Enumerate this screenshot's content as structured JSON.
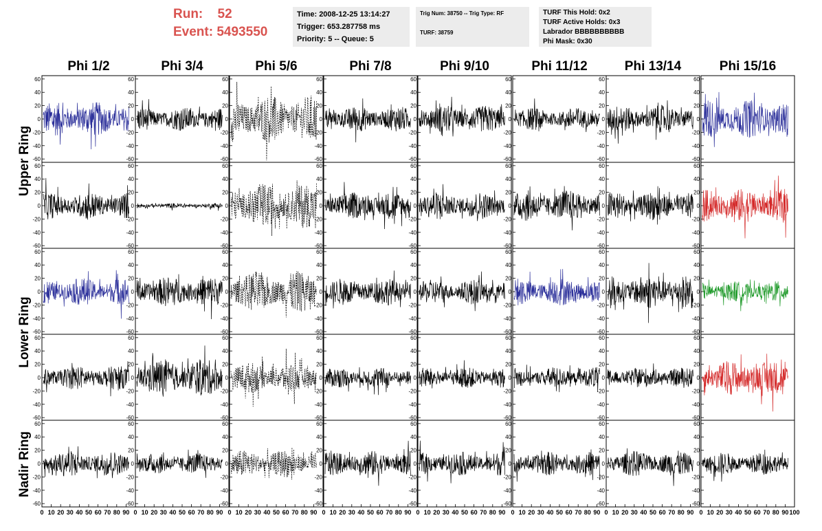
{
  "header": {
    "run_label": "Run:",
    "run_value": "52",
    "event_label": "Event:",
    "event_value": "5493550",
    "label_color": "#d9534f"
  },
  "info_time": {
    "time": "Time: 2008-12-25 13:14:27",
    "trigger": "Trigger: 653.287758 ms",
    "priority": "Priority: 5 -- Queue: 5"
  },
  "info_trig": {
    "trig": "Trig Num: 38750 -- Trig Type: RF",
    "turf": "TURF: 38759"
  },
  "info_turf": {
    "hold": "TURF This Hold: 0x2",
    "active": "TURF Active Holds: 0x3",
    "labrador": "Labrador BBBBBBBBBB",
    "phimask": "Phi Mask: 0x30"
  },
  "columns": [
    "Phi 1/2",
    "Phi 3/4",
    "Phi 5/6",
    "Phi 7/8",
    "Phi 9/10",
    "Phi 11/12",
    "Phi 13/14",
    "Phi 15/16"
  ],
  "ring_labels": {
    "upper": "Upper Ring",
    "lower": "Lower Ring",
    "nadir": "Nadir Ring"
  },
  "chart_data": {
    "type": "line",
    "ylim": [
      -65,
      65
    ],
    "xlim": [
      0,
      100
    ],
    "yticks": [
      "-60",
      "-40",
      "-20",
      "0",
      "20",
      "40",
      "60"
    ],
    "xticks": [
      "0",
      "10",
      "20",
      "30",
      "40",
      "50",
      "60",
      "70",
      "80",
      "90",
      "100"
    ],
    "colors": {
      "default": "#000000",
      "blue": "#2b2f9a",
      "red": "#d42a2a",
      "green": "#1f9a2a"
    },
    "panel_styles": [
      [
        "blue",
        "black",
        "dashed",
        "black",
        "black",
        "black",
        "black",
        "blue"
      ],
      [
        "black",
        "black",
        "dashed",
        "black",
        "black",
        "black",
        "black",
        "red"
      ],
      [
        "blue",
        "black",
        "dashed",
        "black",
        "black",
        "blue",
        "black",
        "green"
      ],
      [
        "black",
        "black",
        "dashed",
        "black",
        "black",
        "black",
        "black",
        "red"
      ],
      [
        "black",
        "black",
        "dashed",
        "black",
        "black",
        "black",
        "black",
        "black"
      ]
    ],
    "panel_amplitudes": [
      [
        20,
        14,
        28,
        15,
        16,
        13,
        16,
        22
      ],
      [
        16,
        3,
        26,
        16,
        16,
        18,
        17,
        20
      ],
      [
        16,
        18,
        24,
        16,
        14,
        16,
        20,
        12
      ],
      [
        14,
        22,
        18,
        12,
        12,
        12,
        12,
        20
      ],
      [
        15,
        12,
        16,
        15,
        14,
        14,
        15,
        13
      ]
    ]
  }
}
